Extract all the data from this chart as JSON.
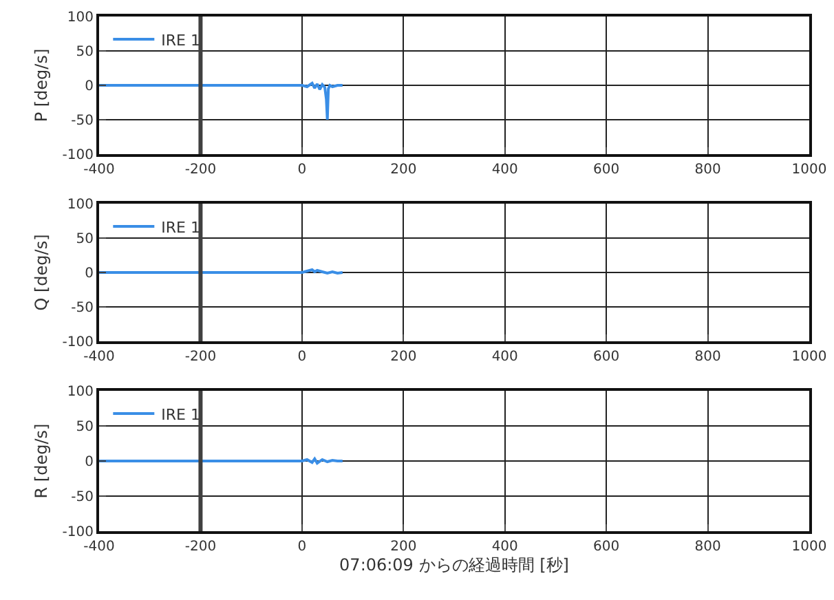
{
  "chart_data": [
    {
      "type": "line",
      "ylabel": "P [deg/s]",
      "x": [
        -400,
        -300,
        -200,
        -100,
        0,
        10,
        20,
        25,
        30,
        35,
        40,
        45,
        48,
        50,
        52,
        55,
        60,
        70,
        80
      ],
      "series": [
        {
          "name": "IRE 1",
          "color": "#3a8ee6",
          "values": [
            0,
            0,
            0,
            0,
            0,
            -2,
            3,
            -4,
            2,
            -6,
            1,
            -3,
            -20,
            -50,
            -5,
            0,
            -2,
            0,
            0
          ]
        }
      ],
      "xlim": [
        -400,
        1000
      ],
      "xticks": [
        -400,
        -200,
        0,
        200,
        400,
        600,
        800,
        1000
      ],
      "ylim": [
        -100,
        100
      ],
      "yticks": [
        -100,
        -50,
        0,
        50,
        100
      ],
      "grid": true,
      "legend": "top left",
      "ref_lines": [
        {
          "axis": "x",
          "value": -200,
          "color": "#404040"
        }
      ]
    },
    {
      "type": "line",
      "ylabel": "Q [deg/s]",
      "x": [
        -400,
        -300,
        -200,
        -100,
        0,
        10,
        20,
        25,
        30,
        40,
        50,
        60,
        70,
        80
      ],
      "series": [
        {
          "name": "IRE 1",
          "color": "#3a8ee6",
          "values": [
            0,
            0,
            0,
            0,
            0,
            2,
            4,
            1,
            3,
            1,
            -1,
            1,
            -1,
            0
          ]
        }
      ],
      "xlim": [
        -400,
        1000
      ],
      "xticks": [
        -400,
        -200,
        0,
        200,
        400,
        600,
        800,
        1000
      ],
      "ylim": [
        -100,
        100
      ],
      "yticks": [
        -100,
        -50,
        0,
        50,
        100
      ],
      "grid": true,
      "legend": "top left",
      "ref_lines": [
        {
          "axis": "x",
          "value": -200,
          "color": "#404040"
        }
      ]
    },
    {
      "type": "line",
      "ylabel": "R [deg/s]",
      "xlabel": "07:06:09 からの経過時間 [秒]",
      "x": [
        -400,
        -300,
        -200,
        -100,
        0,
        10,
        20,
        25,
        30,
        40,
        50,
        60,
        70,
        80
      ],
      "series": [
        {
          "name": "IRE 1",
          "color": "#3a8ee6",
          "values": [
            0,
            0,
            0,
            0,
            0,
            2,
            -2,
            3,
            -3,
            2,
            -1,
            1,
            0,
            0
          ]
        }
      ],
      "xlim": [
        -400,
        1000
      ],
      "xticks": [
        -400,
        -200,
        0,
        200,
        400,
        600,
        800,
        1000
      ],
      "ylim": [
        -100,
        100
      ],
      "yticks": [
        -100,
        -50,
        0,
        50,
        100
      ],
      "grid": true,
      "legend": "top left",
      "ref_lines": [
        {
          "axis": "x",
          "value": -200,
          "color": "#404040"
        }
      ]
    }
  ]
}
